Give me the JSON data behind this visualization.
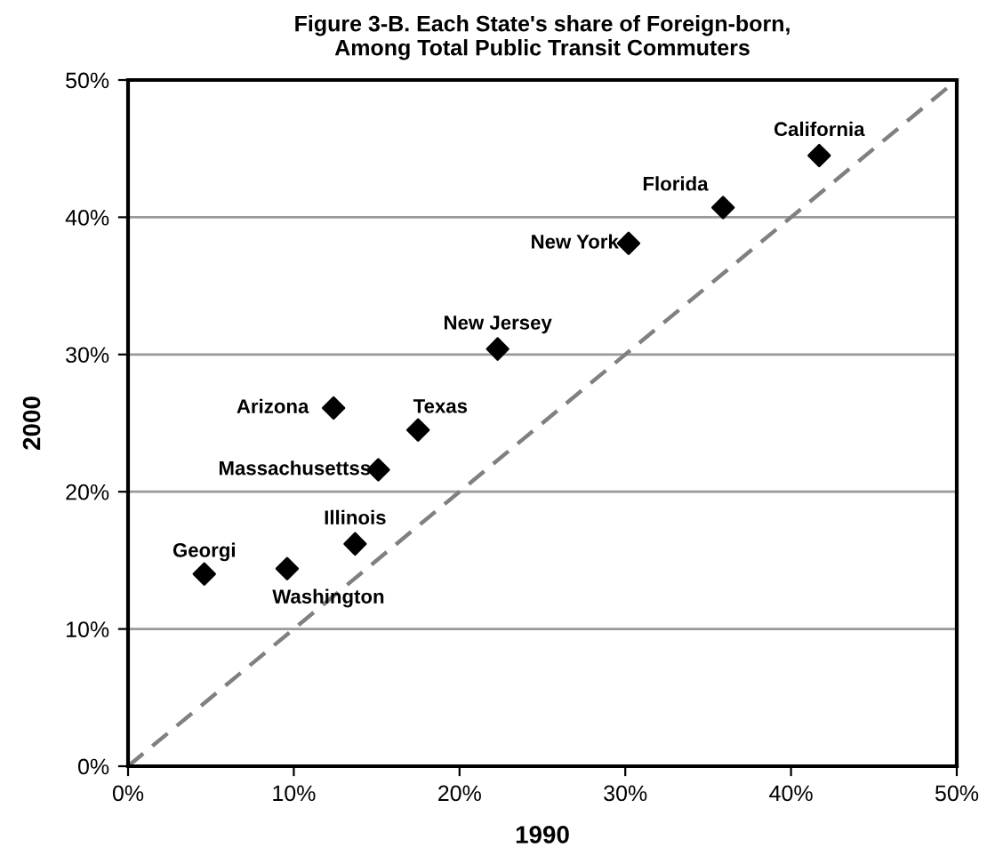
{
  "chart_data": {
    "type": "scatter",
    "title": "Figure 3-B. Each State's share of Foreign-born,\nAmong Total Public Transit Commuters",
    "xlabel": "1990",
    "ylabel": "2000",
    "series": [
      {
        "color": "#000000",
        "marker": "diamond",
        "x": [
          41.7,
          35.9,
          30.2,
          22.3,
          12.4,
          17.5,
          15.1,
          13.7,
          4.6,
          9.6
        ],
        "values": [
          44.5,
          40.7,
          38.1,
          30.4,
          26.1,
          24.5,
          21.6,
          16.2,
          14.0,
          14.4
        ]
      },
      {
        "type": "line",
        "color": "#808080",
        "line_style": "dashed",
        "marker": "none",
        "x": [
          0,
          50
        ],
        "values": [
          0,
          50
        ]
      }
    ],
    "annotations": [
      {
        "text": "California",
        "x": 41.7,
        "y": 44.5
      },
      {
        "text": "Florida",
        "x": 35.9,
        "y": 40.7
      },
      {
        "text": "New York",
        "x": 30.2,
        "y": 38.1
      },
      {
        "text": "New Jersey",
        "x": 22.3,
        "y": 30.4
      },
      {
        "text": "Arizona",
        "x": 12.4,
        "y": 26.1
      },
      {
        "text": "Texas",
        "x": 17.5,
        "y": 24.5
      },
      {
        "text": "Massachusettss",
        "x": 15.1,
        "y": 21.6
      },
      {
        "text": "Illinois",
        "x": 13.7,
        "y": 16.2
      },
      {
        "text": "Georgi",
        "x": 4.6,
        "y": 14.0
      },
      {
        "text": "Washington",
        "x": 9.6,
        "y": 14.4
      }
    ],
    "xlim": [
      0,
      50
    ],
    "ylim": [
      0,
      50
    ],
    "xticks": [
      {
        "value": 0,
        "label": "0%"
      },
      {
        "value": 10,
        "label": "10%"
      },
      {
        "value": 20,
        "label": "20%"
      },
      {
        "value": 30,
        "label": "30%"
      },
      {
        "value": 40,
        "label": "40%"
      },
      {
        "value": 50,
        "label": "50%"
      }
    ],
    "yticks": [
      {
        "value": 0,
        "label": "0%"
      },
      {
        "value": 10,
        "label": "10%"
      },
      {
        "value": 20,
        "label": "20%"
      },
      {
        "value": 30,
        "label": "30%"
      },
      {
        "value": 40,
        "label": "40%"
      },
      {
        "value": 50,
        "label": "50%"
      }
    ],
    "grid": "y",
    "legend": false
  }
}
